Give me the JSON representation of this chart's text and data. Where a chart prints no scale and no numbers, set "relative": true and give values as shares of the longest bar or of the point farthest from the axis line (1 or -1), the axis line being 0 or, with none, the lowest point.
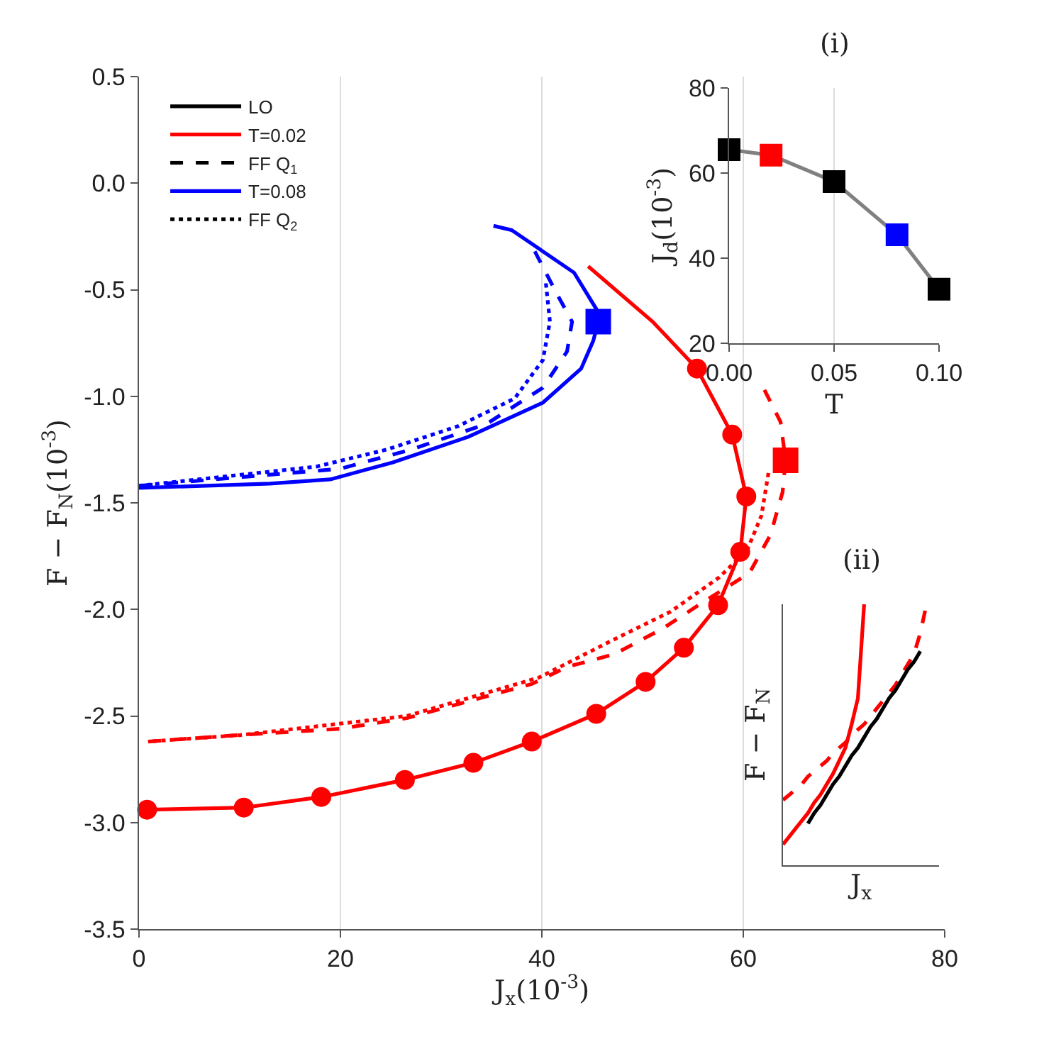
{
  "chart_data": [
    {
      "type": "line",
      "xlabel": "J$_{x}$(10$^{-3}$)",
      "ylabel": "F − F$_{N}$(10$^{-3}$)",
      "xlim": [
        0,
        80
      ],
      "ylim": [
        -3.5,
        0.5
      ],
      "xticks": [
        0,
        20,
        40,
        60,
        80
      ],
      "yticks": [
        {
          "value": 0.5,
          "label": "0.5"
        },
        {
          "value": 0,
          "label": "0.0"
        },
        {
          "value": -0.5,
          "label": "-0.5"
        },
        {
          "value": -1,
          "label": "-1.0"
        },
        {
          "value": -1.5,
          "label": "-1.5"
        },
        {
          "value": -2,
          "label": "-2.0"
        },
        {
          "value": -2.5,
          "label": "-2.5"
        },
        {
          "value": -3,
          "label": "-3.0"
        },
        {
          "value": -3.5,
          "label": "-3.5"
        }
      ],
      "grid": "x",
      "legend": "top left",
      "series": [
        {
          "name": "LO",
          "color": "#000000",
          "line_style": "solid"
        },
        {
          "name": "T=0.02",
          "color": "#ff0000",
          "line_style": "solid"
        },
        {
          "name": "FF Q$_{1}$",
          "color": "#000000",
          "line_style": "dashed"
        },
        {
          "name": "T=0.08",
          "color": "#0000ff",
          "line_style": "solid"
        },
        {
          "name": "FF Q$_{2}$",
          "color": "#000000",
          "line_style": "dotted"
        },
        {
          "color": "#0000ff",
          "line_style": "solid",
          "x": [
            35.2,
            37.0,
            43.2,
            45.4,
            45.6,
            45.1,
            43.9,
            40.1,
            32.7,
            25.2,
            19.0,
            13.0,
            0
          ],
          "values": [
            -0.2,
            -0.22,
            -0.42,
            -0.59,
            -0.65,
            -0.74,
            -0.87,
            -1.03,
            -1.19,
            -1.31,
            -1.39,
            -1.41,
            -1.43
          ]
        },
        {
          "color": "#0000ff",
          "line_style": "dashed",
          "x": [
            39.3,
            41.5,
            43.0,
            42.5,
            40.1,
            34.5,
            27.0,
            20.0,
            0
          ],
          "values": [
            -0.32,
            -0.52,
            -0.65,
            -0.79,
            -0.96,
            -1.13,
            -1.25,
            -1.34,
            -1.42
          ]
        },
        {
          "color": "#0000ff",
          "line_style": "dotted",
          "x": [
            40.4,
            40.8,
            40.1,
            37.3,
            31.7,
            24.6,
            17.6,
            0
          ],
          "values": [
            -0.47,
            -0.65,
            -0.83,
            -1.01,
            -1.14,
            -1.25,
            -1.33,
            -1.42
          ]
        },
        {
          "color": "#ff0000",
          "line_style": "solid",
          "x": [
            44.6,
            51.0,
            55.4,
            58.9,
            60.3,
            59.7,
            57.5,
            54.1,
            50.3,
            45.4,
            39.0,
            33.2,
            26.4,
            18.1,
            10.4,
            0.8
          ],
          "values": [
            -0.39,
            -0.65,
            -0.87,
            -1.18,
            -1.47,
            -1.73,
            -1.98,
            -2.18,
            -2.34,
            -2.49,
            -2.62,
            -2.72,
            -2.8,
            -2.88,
            -2.93,
            -2.94
          ]
        },
        {
          "type": "scatter",
          "color": "#ff0000",
          "marker": "circle",
          "x": [
            55.4,
            58.9,
            60.3,
            59.7,
            57.5,
            54.1,
            50.3,
            45.4,
            39.0,
            33.2,
            26.4,
            18.1,
            10.4,
            0.8
          ],
          "values": [
            -0.87,
            -1.18,
            -1.47,
            -1.73,
            -1.98,
            -2.18,
            -2.34,
            -2.49,
            -2.62,
            -2.72,
            -2.8,
            -2.88,
            -2.93,
            -2.94
          ]
        },
        {
          "color": "#ff0000",
          "line_style": "dashed",
          "x": [
            62.1,
            63.7,
            64.2,
            63.9,
            62.7,
            60.6,
            56.2,
            52.0,
            47.2,
            42.5,
            39.0,
            26.6,
            20.0,
            9.7,
            0.9
          ],
          "values": [
            -0.97,
            -1.12,
            -1.3,
            -1.45,
            -1.65,
            -1.83,
            -1.96,
            -2.09,
            -2.21,
            -2.27,
            -2.35,
            -2.51,
            -2.56,
            -2.59,
            -2.62
          ]
        },
        {
          "color": "#ff0000",
          "line_style": "dotted",
          "x": [
            62.5,
            61.8,
            60.4,
            57.6,
            52.8,
            47.2,
            39.7,
            26.6,
            10.0,
            0.9
          ],
          "values": [
            -1.36,
            -1.56,
            -1.72,
            -1.85,
            -2.01,
            -2.14,
            -2.32,
            -2.5,
            -2.59,
            -2.62
          ]
        },
        {
          "type": "scatter",
          "colors": [
            "#ff0000",
            "#0000ff"
          ],
          "marker": "square",
          "x": [
            64.2,
            45.6
          ],
          "values": [
            -1.3,
            -0.65
          ]
        }
      ]
    },
    {
      "type": "line",
      "title": "(i)",
      "xlabel": "T",
      "ylabel": "J$_{d}$(10$^{-3}$)",
      "xlim": [
        0,
        0.1
      ],
      "ylim": [
        20,
        80
      ],
      "xticks": [
        {
          "value": 0,
          "label": "0.00"
        },
        {
          "value": 0.05,
          "label": "0.05"
        },
        {
          "value": 0.1,
          "label": "0.10"
        }
      ],
      "yticks": [
        20,
        40,
        60,
        80
      ],
      "grid": "x",
      "marker": "square",
      "series": [
        {
          "color": "#808080",
          "colors": [
            "#000000",
            "#ff0000",
            "#000000",
            "#0000ff",
            "#000000"
          ],
          "x": [
            0,
            0.02,
            0.05,
            0.08,
            0.1
          ],
          "values": [
            65.5,
            64.2,
            58.0,
            45.5,
            32.7
          ]
        }
      ]
    },
    {
      "type": "line",
      "title": "(ii)",
      "xlabel": "J$_{x}$",
      "ylabel": "F − F$_{N}$",
      "relative": true,
      "categories": [
        null,
        null,
        null,
        null,
        null,
        null,
        null,
        null,
        null,
        null,
        null,
        null,
        null,
        null,
        null,
        null,
        null,
        null,
        null,
        null,
        null,
        null,
        null,
        null,
        null,
        null
      ],
      "series": [
        {
          "color": "#ff0000",
          "line_style": "solid",
          "values": [
            0.08,
            0.11,
            0.14,
            0.17,
            0.2,
            0.24,
            0.27,
            0.31,
            0.35,
            0.4,
            0.45,
            0.54,
            0.64,
            1,
            null,
            null,
            null,
            null,
            null,
            null,
            null,
            null,
            null,
            null,
            null,
            null
          ]
        },
        {
          "color": "#ff0000",
          "line_style": "dashed",
          "values": [
            0.25,
            0.27,
            0.29,
            0.31,
            0.34,
            0.36,
            0.38,
            0.4,
            0.43,
            0.45,
            0.47,
            0.5,
            0.52,
            0.54,
            0.57,
            0.6,
            0.63,
            0.66,
            0.69,
            0.73,
            0.77,
            0.81,
            0.89,
            1,
            null,
            null
          ]
        },
        {
          "color": "#000000",
          "line_style": "solid",
          "values": [
            null,
            null,
            null,
            null,
            0.16,
            0.2,
            0.23,
            0.27,
            0.31,
            0.34,
            0.38,
            0.42,
            0.45,
            0.49,
            0.53,
            0.56,
            0.6,
            0.64,
            0.67,
            0.71,
            0.75,
            0.78,
            0.82,
            null,
            null,
            null
          ]
        }
      ]
    }
  ]
}
